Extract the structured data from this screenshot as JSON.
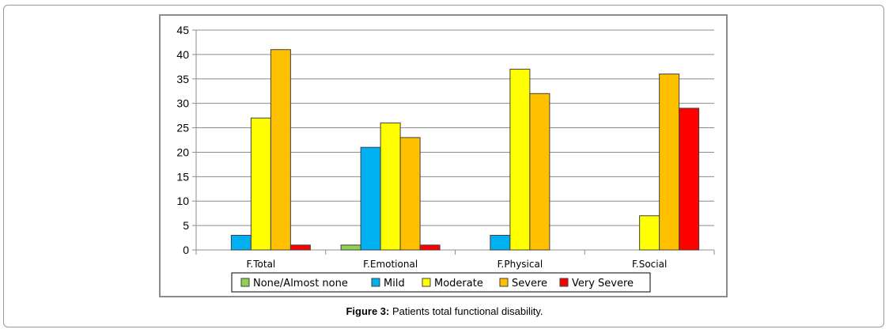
{
  "figure": {
    "caption_label": "Figure 3:",
    "caption_text": " Patients total functional disability."
  },
  "colors": {
    "None/Almost none": "#92d050",
    "Mild": "#00b0f0",
    "Moderate": "#ffff00",
    "Severe": "#ffc000",
    "Very Severe": "#ff0000"
  },
  "chart_data": {
    "type": "bar",
    "title": "",
    "xlabel": "",
    "ylabel": "",
    "ylim": [
      0,
      45
    ],
    "yticks": [
      0,
      5,
      10,
      15,
      20,
      25,
      30,
      35,
      40,
      45
    ],
    "grid": true,
    "legend_position": "bottom",
    "categories": [
      "F.Total",
      "F.Emotional",
      "F.Physical",
      "F.Social"
    ],
    "series": [
      {
        "name": "None/Almost none",
        "values": [
          0,
          1,
          0,
          0
        ]
      },
      {
        "name": "Mild",
        "values": [
          3,
          21,
          3,
          0
        ]
      },
      {
        "name": "Moderate",
        "values": [
          27,
          26,
          37,
          7
        ]
      },
      {
        "name": "Severe",
        "values": [
          41,
          23,
          32,
          36
        ]
      },
      {
        "name": "Very Severe",
        "values": [
          1,
          1,
          0,
          29
        ]
      }
    ]
  }
}
